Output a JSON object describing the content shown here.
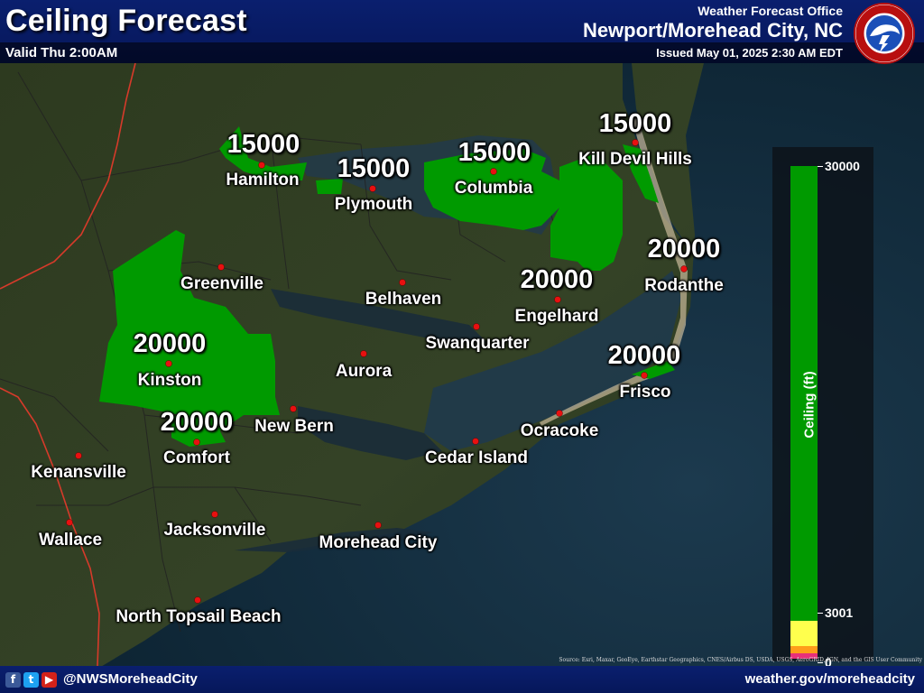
{
  "header": {
    "title": "Ceiling Forecast",
    "valid": "Valid Thu 2:00AM",
    "office_label": "Weather Forecast Office",
    "office_name": "Newport/Morehead City, NC",
    "issued": "Issued May 01, 2025 2:30 AM EDT",
    "logo_text": "NATIONAL WEATHER SERVICE"
  },
  "legend": {
    "title": "Ceiling (ft)",
    "ticks": [
      "30000",
      "3001",
      "0"
    ],
    "colors": {
      "high": "#009a00",
      "mid": "#ffff4d",
      "low": "#ff9e1a",
      "lowest": "#e8307a"
    }
  },
  "map": {
    "forecast_fill": "#009a00",
    "cities": [
      {
        "name": "Hamilton",
        "value": "15000"
      },
      {
        "name": "Plymouth",
        "value": "15000"
      },
      {
        "name": "Columbia",
        "value": "15000"
      },
      {
        "name": "Kill Devil Hills",
        "value": "15000"
      },
      {
        "name": "Greenville",
        "value": ""
      },
      {
        "name": "Belhaven",
        "value": ""
      },
      {
        "name": "Engelhard",
        "value": "20000"
      },
      {
        "name": "Rodanthe",
        "value": "20000"
      },
      {
        "name": "Swanquarter",
        "value": ""
      },
      {
        "name": "Kinston",
        "value": "20000"
      },
      {
        "name": "Aurora",
        "value": ""
      },
      {
        "name": "Frisco",
        "value": "20000"
      },
      {
        "name": "New Bern",
        "value": ""
      },
      {
        "name": "Ocracoke",
        "value": ""
      },
      {
        "name": "Comfort",
        "value": "20000"
      },
      {
        "name": "Cedar Island",
        "value": ""
      },
      {
        "name": "Kenansville",
        "value": ""
      },
      {
        "name": "Jacksonville",
        "value": ""
      },
      {
        "name": "Wallace",
        "value": ""
      },
      {
        "name": "Morehead City",
        "value": ""
      },
      {
        "name": "North Topsail Beach",
        "value": ""
      }
    ]
  },
  "attribution": "Source: Esri, Maxar, GeoEye, Earthstar Geographics, CNES/Airbus DS, USDA, USGS, AeroGRID, IGN, and the GIS User Community",
  "footer": {
    "handle": "@NWSMoreheadCity",
    "website": "weather.gov/moreheadcity",
    "social_icons": [
      "facebook-icon",
      "twitter-icon",
      "youtube-icon"
    ]
  }
}
